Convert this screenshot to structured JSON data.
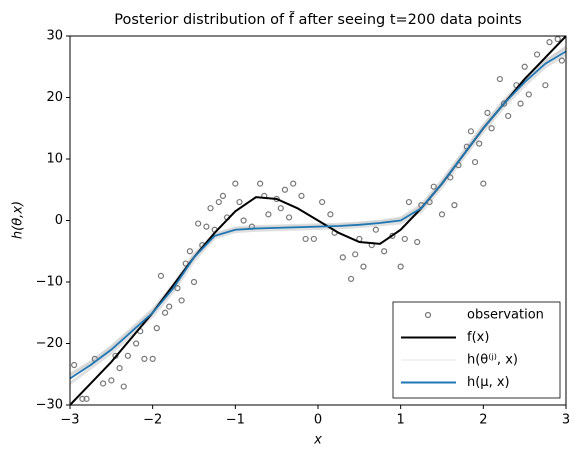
{
  "chart_data": {
    "type": "line",
    "title": "Posterior distribution of f̃ after seeing t=200 data points",
    "xlabel": "x",
    "ylabel": "h(θ,x)",
    "xlim": [
      -3,
      3
    ],
    "ylim": [
      -30,
      30
    ],
    "xticks": [
      {
        "value": -3,
        "label": "−3"
      },
      {
        "value": -2,
        "label": "−2"
      },
      {
        "value": -1,
        "label": "−1"
      },
      0,
      1,
      2,
      3
    ],
    "yticks": [
      {
        "value": -30,
        "label": "−30"
      },
      {
        "value": -20,
        "label": "−20"
      },
      {
        "value": -10,
        "label": "−10"
      },
      0,
      10,
      20,
      30
    ],
    "legend": "lower right",
    "series": [
      {
        "name": "observation",
        "kind": "scatter",
        "color": "#777777",
        "x": [
          -2.95,
          -2.85,
          -2.8,
          -2.7,
          -2.6,
          -2.5,
          -2.45,
          -2.4,
          -2.35,
          -2.3,
          -2.2,
          -2.15,
          -2.1,
          -2.0,
          -1.95,
          -1.9,
          -1.85,
          -1.8,
          -1.7,
          -1.65,
          -1.6,
          -1.55,
          -1.5,
          -1.45,
          -1.4,
          -1.35,
          -1.3,
          -1.25,
          -1.2,
          -1.15,
          -1.1,
          -1.0,
          -0.95,
          -0.9,
          -0.8,
          -0.7,
          -0.65,
          -0.6,
          -0.5,
          -0.45,
          -0.4,
          -0.35,
          -0.3,
          -0.2,
          -0.15,
          -0.05,
          0.05,
          0.15,
          0.2,
          0.3,
          0.4,
          0.45,
          0.5,
          0.55,
          0.65,
          0.7,
          0.8,
          0.9,
          1.0,
          1.05,
          1.1,
          1.2,
          1.25,
          1.35,
          1.4,
          1.5,
          1.6,
          1.65,
          1.7,
          1.8,
          1.85,
          1.9,
          1.95,
          2.0,
          2.05,
          2.1,
          2.2,
          2.25,
          2.3,
          2.4,
          2.45,
          2.5,
          2.55,
          2.65,
          2.75,
          2.8,
          2.9,
          2.95
        ],
        "values": [
          -23.5,
          -29,
          -29,
          -22.5,
          -26.5,
          -26,
          -22,
          -24,
          -27,
          -22,
          -20,
          -18,
          -22.5,
          -22.5,
          -17.5,
          -9,
          -15,
          -14,
          -11,
          -13,
          -7,
          -5,
          -10,
          -0.5,
          -4,
          -1,
          2,
          -1.5,
          3,
          4,
          0.5,
          6,
          3,
          0,
          -1,
          6,
          4,
          1,
          3.5,
          2,
          5,
          0.5,
          6,
          4,
          -3,
          -3,
          3,
          1,
          -2,
          -6,
          -9.5,
          -5.5,
          -3,
          -7.5,
          -4,
          -1.5,
          -5,
          -2.5,
          -7.5,
          -3,
          3,
          -3.5,
          2.5,
          3,
          5.5,
          1,
          7,
          2.5,
          9,
          12,
          14.5,
          9.5,
          12.5,
          6,
          17.5,
          15,
          23,
          19,
          17,
          22,
          19,
          25,
          20.5,
          27,
          22,
          29,
          29.5,
          26
        ]
      },
      {
        "name": "f(x)",
        "kind": "line",
        "color": "#000000",
        "x": [
          -3,
          -2.75,
          -2.5,
          -2.25,
          -2,
          -1.75,
          -1.5,
          -1.25,
          -1,
          -0.75,
          -0.5,
          -0.25,
          0,
          0.25,
          0.5,
          0.75,
          1,
          1.25,
          1.5,
          1.75,
          2,
          2.25,
          2.5,
          2.75,
          3
        ],
        "values": [
          -30,
          -26.5,
          -23,
          -19,
          -15,
          -10.5,
          -6,
          -2,
          1.5,
          3.8,
          3.5,
          2,
          0,
          -2,
          -3.5,
          -3.8,
          -1.5,
          2,
          6,
          10.5,
          15,
          19,
          23,
          26.5,
          30
        ]
      },
      {
        "name": "h(θ⁽ʲ⁾, x)",
        "kind": "samples",
        "color": "#cccccc",
        "x": [
          -3,
          -2.75,
          -2.5,
          -2.25,
          -2,
          -1.75,
          -1.5,
          -1.25,
          -1,
          -0.75,
          -0.5,
          -0.25,
          0,
          0.25,
          0.5,
          0.75,
          1,
          1.25,
          1.5,
          1.75,
          2,
          2.25,
          2.5,
          2.75,
          3
        ],
        "samples": [
          [
            -25,
            -23,
            -20.5,
            -17.5,
            -14.5,
            -10.5,
            -5.5,
            -2.2,
            -1.2,
            -1,
            -0.9,
            -0.8,
            -0.7,
            -0.6,
            -0.4,
            -0.1,
            0.4,
            2.5,
            6.5,
            11,
            15.5,
            19.5,
            23,
            26,
            28
          ],
          [
            -26.5,
            -24,
            -21.5,
            -18.5,
            -15.5,
            -11.5,
            -6.5,
            -2.8,
            -1.8,
            -1.6,
            -1.5,
            -1.4,
            -1.3,
            -1.2,
            -1,
            -0.7,
            -0.4,
            1.5,
            5.5,
            10,
            14.5,
            18.5,
            22,
            25,
            27
          ],
          [
            -25.3,
            -23.2,
            -20.7,
            -17.8,
            -14.7,
            -10.7,
            -5.8,
            -2.4,
            -1.4,
            -1.2,
            -1.1,
            -1.0,
            -0.9,
            -0.8,
            -0.5,
            -0.2,
            0.2,
            2.2,
            6.2,
            10.8,
            15.3,
            19.3,
            22.8,
            25.8,
            28.2
          ]
        ]
      },
      {
        "name": "h(μ, x)",
        "kind": "line",
        "color": "#1f77b4",
        "x": [
          -3,
          -2.75,
          -2.5,
          -2.25,
          -2,
          -1.75,
          -1.5,
          -1.25,
          -1,
          -0.75,
          -0.5,
          -0.25,
          0,
          0.25,
          0.5,
          0.75,
          1,
          1.25,
          1.5,
          1.75,
          2,
          2.25,
          2.5,
          2.75,
          3
        ],
        "values": [
          -25.7,
          -23.5,
          -21,
          -18,
          -15,
          -11,
          -6,
          -2.5,
          -1.5,
          -1.3,
          -1.2,
          -1.1,
          -1,
          -0.9,
          -0.7,
          -0.4,
          0,
          2,
          6,
          10.5,
          15,
          19,
          22.5,
          25.5,
          27.5
        ]
      }
    ]
  }
}
